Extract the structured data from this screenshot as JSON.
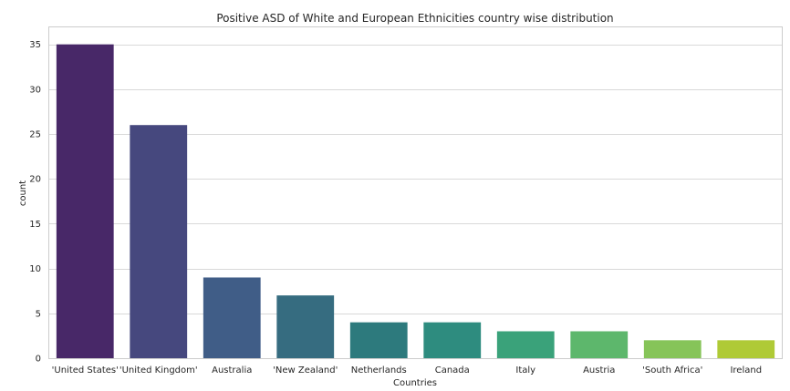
{
  "chart_data": {
    "type": "bar",
    "title": "Positive ASD of White and European Ethnicities country wise distribution",
    "xlabel": "Countries",
    "ylabel": "count",
    "categories": [
      "'United States'",
      "'United Kingdom'",
      "Australia",
      "'New Zealand'",
      "Netherlands",
      "Canada",
      "Italy",
      "Austria",
      "'South Africa'",
      "Ireland"
    ],
    "values": [
      35,
      26,
      9,
      7,
      4,
      4,
      3,
      3,
      2,
      2
    ],
    "colors": [
      "#482868",
      "#46487e",
      "#405d87",
      "#366c80",
      "#2d7a7d",
      "#2e8c7f",
      "#3aa27a",
      "#5db76c",
      "#86c459",
      "#afca36"
    ],
    "ylim": [
      0,
      37
    ],
    "yticks": [
      0,
      5,
      10,
      15,
      20,
      25,
      30,
      35
    ],
    "grid": "horizontal",
    "style": {
      "background": "#ffffff",
      "grid_color": "#d9d9d9",
      "spine_color": "#cccccc",
      "text_color": "#262626"
    }
  }
}
